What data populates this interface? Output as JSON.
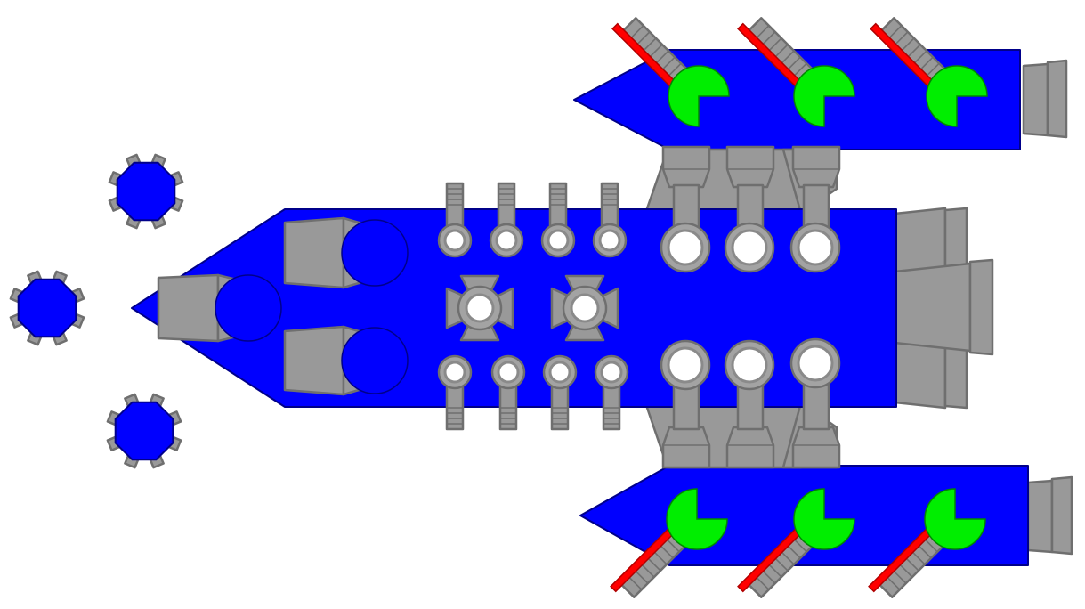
{
  "entity": {
    "kind": "tank",
    "body_color": "#0000ff",
    "barrel_color": "#999999",
    "turret_color": "#00ee00",
    "laser_color": "#ff0000"
  },
  "drones": {
    "count": 3,
    "color": "#0000ff",
    "icon": "octagon-gear-icon"
  }
}
